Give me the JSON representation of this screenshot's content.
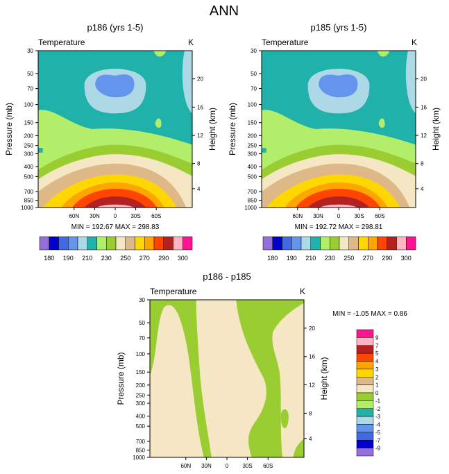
{
  "page_title": "ANN",
  "chart_data": [
    {
      "type": "contour",
      "title": "p186 (yrs 1-5)",
      "left_label": "Temperature",
      "right_label": "K",
      "ylabel": "Pressure (mb)",
      "y2label": "Height (km)",
      "pressure_ticks": [
        "30",
        "50",
        "70",
        "100",
        "150",
        "200",
        "250",
        "300",
        "400",
        "500",
        "700",
        "850",
        "1000"
      ],
      "height_ticks": [
        "20",
        "16",
        "12",
        "8",
        "4"
      ],
      "x_ticks": [
        "60N",
        "30N",
        "0",
        "30S",
        "60S"
      ],
      "stats": "MIN = 192.67   MAX = 298.83",
      "colorbar_labels": [
        "180",
        "190",
        "210",
        "230",
        "250",
        "270",
        "290",
        "300"
      ],
      "colorbar_colors": [
        "#9370DB",
        "#0000CD",
        "#4169E1",
        "#6495ED",
        "#ADD8E6",
        "#20B2AA",
        "#B3EE6A",
        "#9ACD32",
        "#F5E6C4",
        "#DEB887",
        "#FFD700",
        "#FFA500",
        "#FF4500",
        "#B22222",
        "#FFB6C1",
        "#FF1493"
      ]
    },
    {
      "type": "contour",
      "title": "p185 (yrs 1-5)",
      "left_label": "Temperature",
      "right_label": "K",
      "ylabel": "Pressure (mb)",
      "y2label": "Height (km)",
      "pressure_ticks": [
        "30",
        "50",
        "70",
        "100",
        "150",
        "200",
        "250",
        "300",
        "400",
        "500",
        "700",
        "850",
        "1000"
      ],
      "height_ticks": [
        "20",
        "16",
        "12",
        "8",
        "4"
      ],
      "x_ticks": [
        "60N",
        "30N",
        "0",
        "30S",
        "60S"
      ],
      "stats": "MIN = 192.72   MAX = 298.81",
      "colorbar_labels": [
        "180",
        "190",
        "210",
        "230",
        "250",
        "270",
        "290",
        "300"
      ],
      "colorbar_colors": [
        "#9370DB",
        "#0000CD",
        "#4169E1",
        "#6495ED",
        "#ADD8E6",
        "#20B2AA",
        "#B3EE6A",
        "#9ACD32",
        "#F5E6C4",
        "#DEB887",
        "#FFD700",
        "#FFA500",
        "#FF4500",
        "#B22222",
        "#FFB6C1",
        "#FF1493"
      ]
    },
    {
      "type": "contour",
      "title": "p186 - p185",
      "left_label": "Temperature",
      "right_label": "K",
      "ylabel": "Pressure (mb)",
      "y2label": "Height (km)",
      "pressure_ticks": [
        "30",
        "50",
        "70",
        "100",
        "150",
        "200",
        "250",
        "300",
        "400",
        "500",
        "700",
        "850",
        "1000"
      ],
      "height_ticks": [
        "20",
        "16",
        "12",
        "8",
        "4"
      ],
      "x_ticks": [
        "60N",
        "30N",
        "0",
        "30S",
        "60S"
      ],
      "stats": "MIN =  -1.05  MAX =   0.86",
      "colorbar_labels": [
        "9",
        "7",
        "5",
        "4",
        "3",
        "2",
        "1",
        "0",
        "-1",
        "-2",
        "-3",
        "-4",
        "-5",
        "-7",
        "-9"
      ],
      "colorbar_colors": [
        "#FF1493",
        "#FFB6C1",
        "#B22222",
        "#FF4500",
        "#FFA500",
        "#FFD700",
        "#DEB887",
        "#F5E6C4",
        "#9ACD32",
        "#B3EE6A",
        "#20B2AA",
        "#ADD8E6",
        "#6495ED",
        "#4169E1",
        "#0000CD",
        "#9370DB"
      ]
    }
  ]
}
